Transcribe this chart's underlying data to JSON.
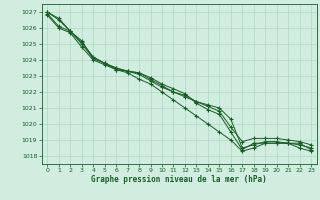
{
  "title": "Graphe pression niveau de la mer (hPa)",
  "background_color": "#d0ede0",
  "grid_color": "#b0d8c0",
  "line_color": "#1a5c28",
  "xlim": [
    -0.5,
    23.5
  ],
  "ylim": [
    1017.5,
    1027.5
  ],
  "yticks": [
    1018,
    1019,
    1020,
    1021,
    1022,
    1023,
    1024,
    1025,
    1026,
    1027
  ],
  "xticks": [
    0,
    1,
    2,
    3,
    4,
    5,
    6,
    7,
    8,
    9,
    10,
    11,
    12,
    13,
    14,
    15,
    16,
    17,
    18,
    19,
    20,
    21,
    22,
    23
  ],
  "lines": [
    [
      1027.0,
      1026.6,
      1025.8,
      1025.2,
      1024.1,
      1023.8,
      1023.4,
      1023.3,
      1023.2,
      1022.9,
      1022.5,
      1022.2,
      1021.9,
      1021.3,
      1020.9,
      1020.6,
      1019.5,
      1018.4,
      1018.8,
      1018.8,
      1018.8,
      1018.8,
      1018.7,
      1018.5
    ],
    [
      1026.9,
      1026.1,
      1025.8,
      1025.1,
      1024.2,
      1023.8,
      1023.5,
      1023.3,
      1023.2,
      1022.8,
      1022.4,
      1022.0,
      1021.8,
      1021.4,
      1021.1,
      1020.8,
      1019.8,
      1018.9,
      1019.1,
      1019.1,
      1019.1,
      1019.0,
      1018.9,
      1018.7
    ],
    [
      1027.0,
      1026.5,
      1025.8,
      1025.0,
      1024.1,
      1023.8,
      1023.5,
      1023.3,
      1023.1,
      1022.7,
      1022.3,
      1022.0,
      1021.7,
      1021.4,
      1021.2,
      1021.0,
      1020.3,
      1018.5,
      1018.7,
      1018.9,
      1018.9,
      1018.8,
      1018.8,
      1018.4
    ],
    [
      1026.8,
      1026.0,
      1025.7,
      1024.8,
      1024.0,
      1023.7,
      1023.4,
      1023.2,
      1022.8,
      1022.5,
      1022.0,
      1021.5,
      1021.0,
      1020.5,
      1020.0,
      1019.5,
      1019.0,
      1018.3,
      1018.5,
      1018.8,
      1018.8,
      1018.8,
      1018.5,
      1018.3
    ]
  ]
}
